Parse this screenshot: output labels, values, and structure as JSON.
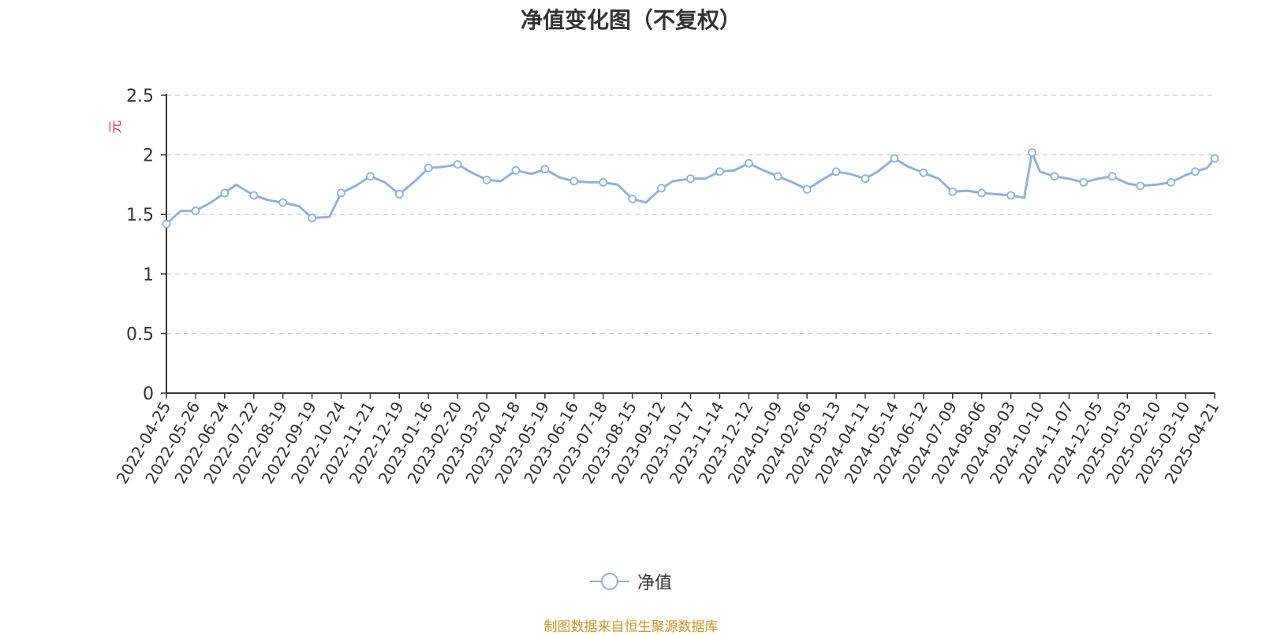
{
  "source_note": "制图数据来自恒生聚源数据库",
  "colors": {
    "line": "#8fb1dd",
    "grid": "#cccccc",
    "axis": "#333333",
    "ylabel": "#e03030",
    "source": "#c8962c"
  },
  "chart_data": {
    "type": "line",
    "title": "净值变化图（不复权）",
    "xlabel": "",
    "ylabel": "元",
    "ylim": [
      0,
      2.5
    ],
    "yticks": [
      0,
      0.5,
      1,
      1.5,
      2,
      2.5
    ],
    "ytick_labels": [
      "0",
      "0.5",
      "1",
      "1.5",
      "2",
      "2.5"
    ],
    "grid": true,
    "legend_position": "bottom",
    "xticks": [
      "2022-04-25",
      "2022-05-26",
      "2022-06-24",
      "2022-07-22",
      "2022-08-19",
      "2022-09-19",
      "2022-10-24",
      "2022-11-21",
      "2022-12-19",
      "2023-01-16",
      "2023-02-20",
      "2023-03-20",
      "2023-04-18",
      "2023-05-19",
      "2023-06-16",
      "2023-07-18",
      "2023-08-15",
      "2023-09-12",
      "2023-10-17",
      "2023-11-14",
      "2023-12-12",
      "2024-01-09",
      "2024-02-06",
      "2024-03-13",
      "2024-04-11",
      "2024-05-14",
      "2024-06-12",
      "2024-07-09",
      "2024-08-06",
      "2024-09-03",
      "2024-10-10",
      "2024-11-07",
      "2024-12-05",
      "2025-01-03",
      "2025-02-10",
      "2025-03-10",
      "2025-04-21"
    ],
    "series": [
      {
        "name": "净值",
        "x": [
          "2022-04-25",
          "2022-05-10",
          "2022-05-26",
          "2022-06-10",
          "2022-06-24",
          "2022-07-05",
          "2022-07-22",
          "2022-08-05",
          "2022-08-19",
          "2022-09-05",
          "2022-09-19",
          "2022-10-10",
          "2022-10-24",
          "2022-11-07",
          "2022-11-21",
          "2022-12-05",
          "2022-12-19",
          "2023-01-03",
          "2023-01-16",
          "2023-02-03",
          "2023-02-20",
          "2023-03-06",
          "2023-03-20",
          "2023-04-03",
          "2023-04-18",
          "2023-05-05",
          "2023-05-19",
          "2023-06-02",
          "2023-06-16",
          "2023-07-03",
          "2023-07-18",
          "2023-08-01",
          "2023-08-15",
          "2023-08-28",
          "2023-09-12",
          "2023-09-26",
          "2023-10-17",
          "2023-10-31",
          "2023-11-14",
          "2023-11-28",
          "2023-12-12",
          "2023-12-26",
          "2024-01-09",
          "2024-01-23",
          "2024-02-06",
          "2024-02-27",
          "2024-03-13",
          "2024-03-27",
          "2024-04-11",
          "2024-04-25",
          "2024-05-14",
          "2024-05-28",
          "2024-06-12",
          "2024-06-26",
          "2024-07-09",
          "2024-07-23",
          "2024-08-06",
          "2024-08-20",
          "2024-09-03",
          "2024-09-20",
          "2024-09-30",
          "2024-10-10",
          "2024-10-24",
          "2024-11-07",
          "2024-11-21",
          "2024-12-05",
          "2024-12-19",
          "2025-01-03",
          "2025-01-20",
          "2025-02-10",
          "2025-02-24",
          "2025-03-10",
          "2025-03-24",
          "2025-04-10",
          "2025-04-21"
        ],
        "values": [
          1.42,
          1.53,
          1.53,
          1.6,
          1.68,
          1.75,
          1.66,
          1.62,
          1.6,
          1.57,
          1.47,
          1.48,
          1.68,
          1.74,
          1.82,
          1.77,
          1.67,
          1.78,
          1.89,
          1.9,
          1.92,
          1.85,
          1.79,
          1.78,
          1.87,
          1.84,
          1.88,
          1.81,
          1.78,
          1.77,
          1.77,
          1.75,
          1.63,
          1.6,
          1.72,
          1.78,
          1.8,
          1.8,
          1.86,
          1.87,
          1.93,
          1.87,
          1.82,
          1.77,
          1.71,
          1.8,
          1.86,
          1.84,
          1.8,
          1.86,
          1.97,
          1.9,
          1.85,
          1.8,
          1.69,
          1.7,
          1.68,
          1.67,
          1.66,
          1.64,
          2.02,
          1.86,
          1.82,
          1.8,
          1.77,
          1.8,
          1.82,
          1.76,
          1.74,
          1.75,
          1.77,
          1.83,
          1.86,
          1.89,
          1.97
        ]
      }
    ]
  }
}
